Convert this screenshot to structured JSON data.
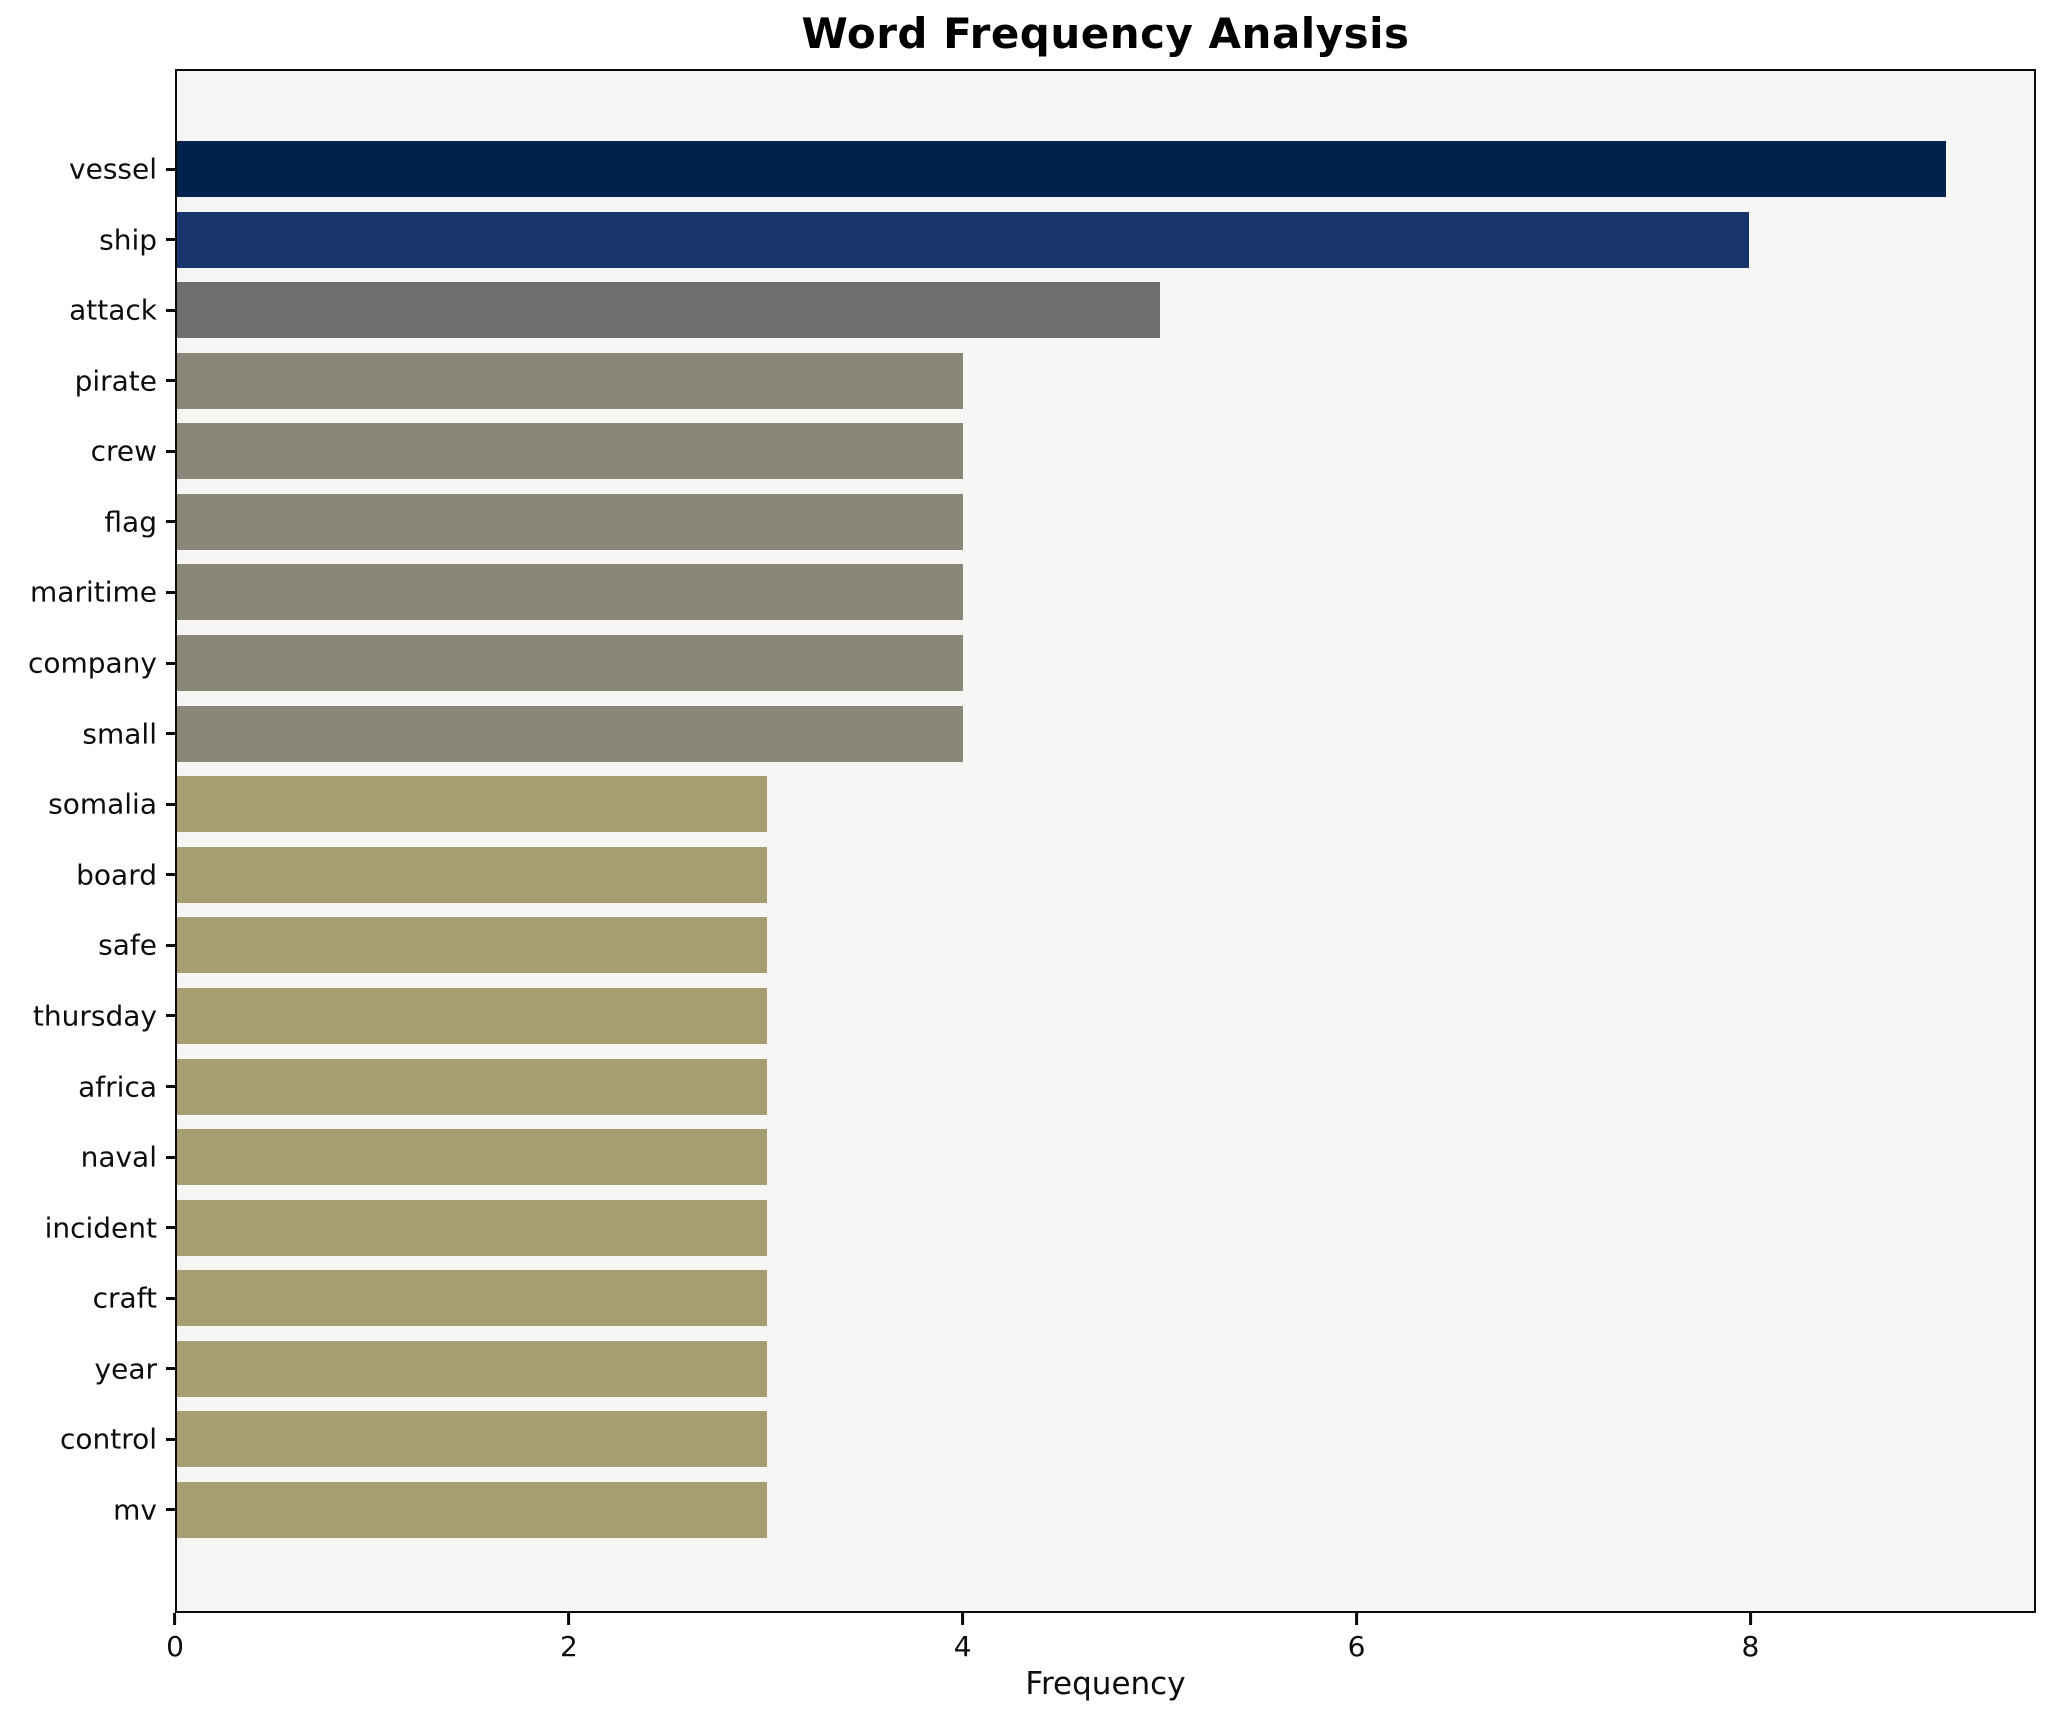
{
  "title": "Word Frequency Analysis",
  "chart_data": {
    "type": "bar",
    "orientation": "horizontal",
    "title": "Word Frequency Analysis",
    "xlabel": "Frequency",
    "ylabel": "",
    "xlim": [
      0,
      9.45
    ],
    "xticks": [
      "0",
      "2",
      "4",
      "6",
      "8"
    ],
    "xtick_values": [
      0,
      2,
      4,
      6,
      8
    ],
    "grid": false,
    "legend": "none",
    "categories": [
      "vessel",
      "ship",
      "attack",
      "pirate",
      "crew",
      "flag",
      "maritime",
      "company",
      "small",
      "somalia",
      "board",
      "safe",
      "thursday",
      "africa",
      "naval",
      "incident",
      "craft",
      "year",
      "control",
      "mv"
    ],
    "values": [
      9,
      8,
      5,
      4,
      4,
      4,
      4,
      4,
      4,
      3,
      3,
      3,
      3,
      3,
      3,
      3,
      3,
      3,
      3,
      3
    ],
    "bar_colors": [
      "#00224d",
      "#17346b",
      "#6d6e70",
      "#8a8779",
      "#8a8779",
      "#8a8779",
      "#8a8779",
      "#8a8779",
      "#8a8779",
      "#a69d72",
      "#a69d72",
      "#a69d72",
      "#a69d72",
      "#a69d72",
      "#a69d72",
      "#a69d72",
      "#a69d72",
      "#a69d72",
      "#a69d72",
      "#a69d72"
    ],
    "colors": {
      "plot_background": "#f6f6f4",
      "figure_background": "#ffffff",
      "spine": "#0a0a0a",
      "text": "#0d0d0d"
    }
  }
}
